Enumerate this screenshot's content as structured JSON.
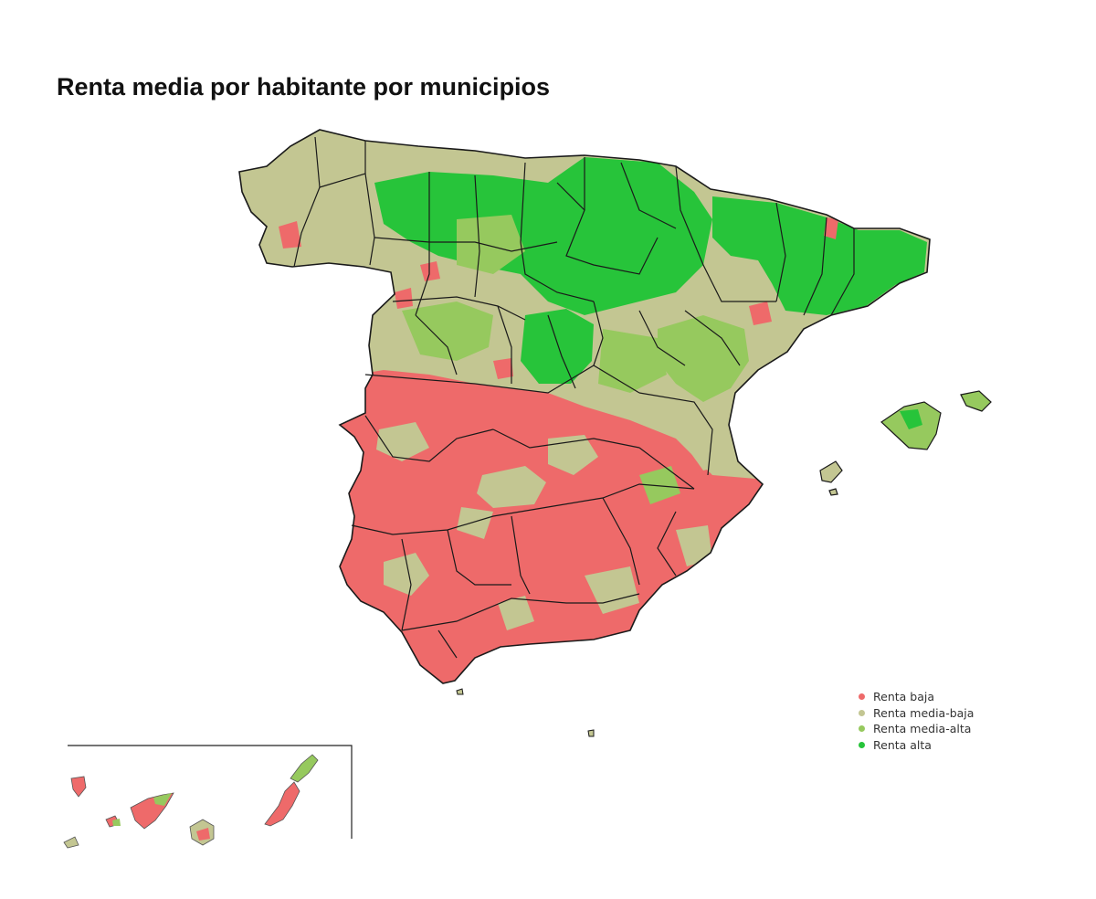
{
  "title": "Renta media por habitante por municipios",
  "legend": [
    {
      "label": "Renta baja",
      "color": "#ee6a6a"
    },
    {
      "label": "Renta media-baja",
      "color": "#c3c692"
    },
    {
      "label": "Renta media-alta",
      "color": "#96c95e"
    },
    {
      "label": "Renta alta",
      "color": "#27c43a"
    }
  ],
  "inset": {
    "region": "Canarias"
  }
}
